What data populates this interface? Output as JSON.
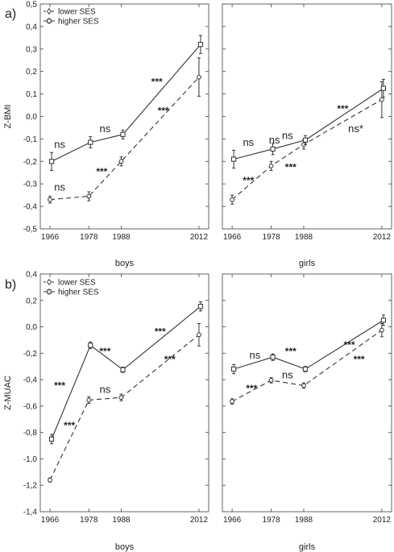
{
  "chart_data": [
    {
      "type": "line",
      "panel_label": "a)",
      "ylabel": "Z-BMI",
      "ylim": [
        -0.5,
        0.5
      ],
      "yticks": [
        "-0,5",
        "-0,4",
        "-0,3",
        "-0,2",
        "-0,1",
        "0,0",
        "0,1",
        "0,2",
        "0,3",
        "0,4",
        "0,5"
      ],
      "legend": [
        "lower SES",
        "higher SES"
      ],
      "legend_position": "top-left",
      "subplots": [
        {
          "label": "boys",
          "xticks": [
            "1966",
            "1978",
            "1988",
            "2012"
          ],
          "x": [
            1966,
            1978,
            1988,
            2012
          ],
          "series": [
            {
              "name": "lower SES",
              "style": "dashed",
              "marker": "circle",
              "values": [
                -0.37,
                -0.355,
                -0.2,
                0.175
              ],
              "errors": [
                0.015,
                0.02,
                0.02,
                0.085
              ]
            },
            {
              "name": "higher SES",
              "style": "solid",
              "marker": "square",
              "values": [
                -0.2,
                -0.115,
                -0.08,
                0.32
              ],
              "errors": [
                0.04,
                0.025,
                0.02,
                0.04
              ]
            }
          ],
          "annotations": [
            {
              "text": "ns",
              "x": 1969,
              "y": -0.14
            },
            {
              "text": "ns",
              "x": 1969,
              "y": -0.33
            },
            {
              "text": "ns",
              "x": 1983,
              "y": -0.07
            },
            {
              "text": "***",
              "x": 1982,
              "y": -0.26
            },
            {
              "text": "***",
              "x": 1999,
              "y": 0.14
            },
            {
              "text": "***",
              "x": 2001,
              "y": 0.01
            }
          ]
        },
        {
          "label": "girls",
          "xticks": [
            "1966",
            "1978",
            "1988",
            "2012"
          ],
          "x": [
            1966,
            1978,
            1988,
            2012
          ],
          "series": [
            {
              "name": "lower SES",
              "style": "dashed",
              "marker": "circle",
              "values": [
                -0.37,
                -0.22,
                -0.125,
                0.075
              ],
              "errors": [
                0.02,
                0.02,
                0.02,
                0.08
              ]
            },
            {
              "name": "higher SES",
              "style": "solid",
              "marker": "square",
              "values": [
                -0.19,
                -0.145,
                -0.105,
                0.125
              ],
              "errors": [
                0.04,
                0.025,
                0.02,
                0.04
              ]
            }
          ],
          "annotations": [
            {
              "text": "ns",
              "x": 1971,
              "y": -0.13
            },
            {
              "text": "ns",
              "x": 1983,
              "y": -0.1
            },
            {
              "text": "ns",
              "x": 1979,
              "y": -0.12
            },
            {
              "text": "***",
              "x": 1971,
              "y": -0.3
            },
            {
              "text": "***",
              "x": 1984,
              "y": -0.24
            },
            {
              "text": "***",
              "x": 2000,
              "y": 0.02
            },
            {
              "text": "ns*",
              "x": 2004,
              "y": -0.07
            }
          ]
        }
      ]
    },
    {
      "type": "line",
      "panel_label": "b)",
      "ylabel": "Z-MUAC",
      "ylim": [
        -1.4,
        0.4
      ],
      "yticks": [
        "-1,4",
        "-1,2",
        "-1,0",
        "-0,8",
        "-0,6",
        "-0,4",
        "-0,2",
        "0,0",
        "0,2",
        "0,4"
      ],
      "legend": [
        "lower SES",
        "higher SES"
      ],
      "legend_position": "top-left",
      "subplots": [
        {
          "label": "boys",
          "xticks": [
            "1966",
            "1978",
            "1988",
            "2012"
          ],
          "x": [
            1966,
            1978,
            1988,
            2012
          ],
          "series": [
            {
              "name": "lower SES",
              "style": "dashed",
              "marker": "circle",
              "values": [
                -1.16,
                -0.555,
                -0.535,
                -0.06
              ],
              "errors": [
                0.015,
                0.025,
                0.025,
                0.085
              ]
            },
            {
              "name": "higher SES",
              "style": "solid",
              "marker": "square",
              "values": [
                -0.85,
                -0.14,
                -0.325,
                0.155
              ],
              "errors": [
                0.035,
                0.025,
                0.02,
                0.035
              ]
            }
          ],
          "annotations": [
            {
              "text": "***",
              "x": 1969,
              "y": -0.47
            },
            {
              "text": "***",
              "x": 1972,
              "y": -0.77
            },
            {
              "text": "ns",
              "x": 1983,
              "y": -0.5
            },
            {
              "text": "***",
              "x": 1983,
              "y": -0.21
            },
            {
              "text": "***",
              "x": 2000,
              "y": -0.06
            },
            {
              "text": "***",
              "x": 2003,
              "y": -0.27
            }
          ]
        },
        {
          "label": "girls",
          "xticks": [
            "1966",
            "1978",
            "1988",
            "2012"
          ],
          "x": [
            1966,
            1978,
            1988,
            2012
          ],
          "series": [
            {
              "name": "lower SES",
              "style": "dashed",
              "marker": "circle",
              "values": [
                -0.565,
                -0.405,
                -0.445,
                -0.025
              ],
              "errors": [
                0.02,
                0.02,
                0.02,
                0.05
              ]
            },
            {
              "name": "higher SES",
              "style": "solid",
              "marker": "square",
              "values": [
                -0.32,
                -0.23,
                -0.32,
                0.05
              ],
              "errors": [
                0.035,
                0.025,
                0.02,
                0.04
              ]
            }
          ],
          "annotations": [
            {
              "text": "ns",
              "x": 1973,
              "y": -0.24
            },
            {
              "text": "***",
              "x": 1984,
              "y": -0.21
            },
            {
              "text": "ns",
              "x": 1983,
              "y": -0.39
            },
            {
              "text": "***",
              "x": 1972,
              "y": -0.49
            },
            {
              "text": "***",
              "x": 2002,
              "y": -0.16
            },
            {
              "text": "***",
              "x": 2005,
              "y": -0.27
            }
          ]
        }
      ]
    }
  ]
}
